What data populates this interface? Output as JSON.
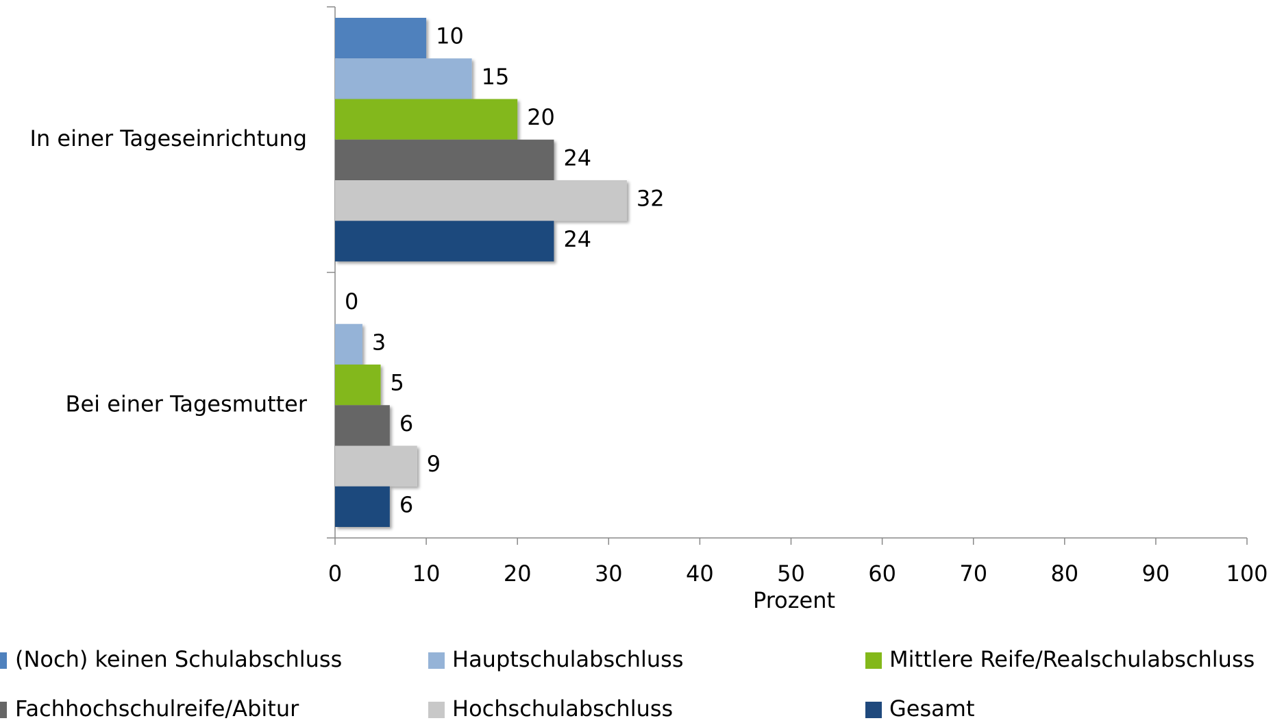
{
  "chart_data": {
    "type": "hbar",
    "categories": [
      "In einer Tageseinrichtung",
      "Bei einer Tagesmutter"
    ],
    "series": [
      {
        "name": "(Noch) keinen Schulabschluss",
        "color": "#4f81bd",
        "values": [
          10,
          0
        ]
      },
      {
        "name": "Hauptschulabschluss",
        "color": "#95b3d7",
        "values": [
          15,
          3
        ]
      },
      {
        "name": "Mittlere Reife/Realschulabschluss",
        "color": "#83b81a",
        "values": [
          20,
          5
        ]
      },
      {
        "name": "Fachhochschulreife/Abitur",
        "color": "#666666",
        "values": [
          24,
          6
        ]
      },
      {
        "name": "Hochschulabschluss",
        "color": "#c8c8c8",
        "values": [
          32,
          9
        ]
      },
      {
        "name": "Gesamt",
        "color": "#1f497d",
        "values": [
          24,
          6
        ]
      }
    ],
    "xlabel": "Prozent",
    "xlim": [
      0,
      100
    ],
    "xticks": [
      0,
      10,
      20,
      30,
      40,
      50,
      60,
      70,
      80,
      90,
      100
    ],
    "grid": false,
    "legend": "bottom"
  }
}
